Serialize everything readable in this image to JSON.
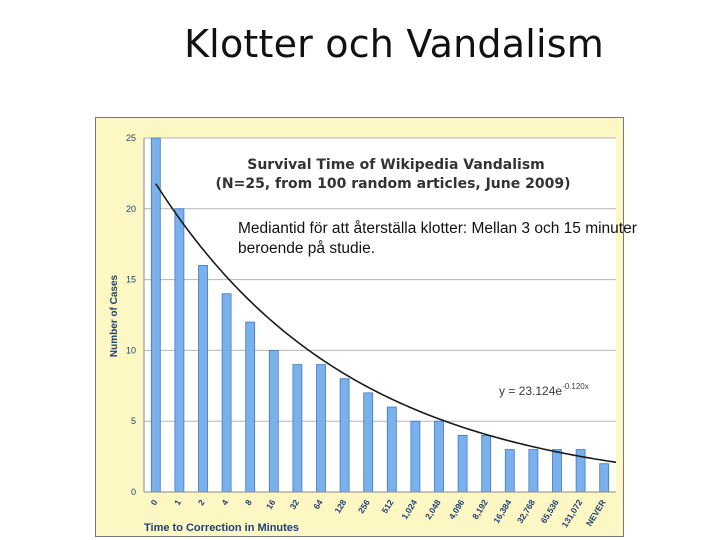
{
  "slide": {
    "title": "Klotter och Vandalism",
    "note": "Mediantid för att återställa klotter: Mellan 3 och 15 minuter beroende på studie."
  },
  "colors": {
    "frame_bg": "#fdf7c3",
    "plot_bg": "#ffffff",
    "bar": "#7ab1ec",
    "bar_edge": "#3f78c4",
    "axis_text": "#1f3f7a",
    "trend": "#1a1a1a"
  },
  "chart_data": {
    "type": "bar",
    "title": "Survival Time of Wikipedia Vandalism",
    "subtitle": "(N=25, from 100 random articles, June 2009)",
    "xlabel": "Time to Correction in Minutes",
    "ylabel": "Number of Cases",
    "ylim": [
      0,
      25
    ],
    "yticks": [
      0,
      5,
      10,
      15,
      20,
      25
    ],
    "grid": true,
    "categories": [
      "0",
      "1",
      "2",
      "4",
      "8",
      "16",
      "32",
      "64",
      "128",
      "256",
      "512",
      "1,024",
      "2,048",
      "4,096",
      "8,192",
      "16,384",
      "32,768",
      "65,536",
      "131,072",
      "NEVER"
    ],
    "values": [
      25,
      20,
      16,
      14,
      12,
      10,
      9,
      9,
      8,
      7,
      6,
      5,
      5,
      4,
      4,
      3,
      3,
      3,
      3,
      2
    ],
    "trendline": {
      "type": "exponential",
      "a": 23.124,
      "b": -0.12,
      "label_main": "y = 23.124e",
      "label_exp": "-0.120x"
    }
  }
}
